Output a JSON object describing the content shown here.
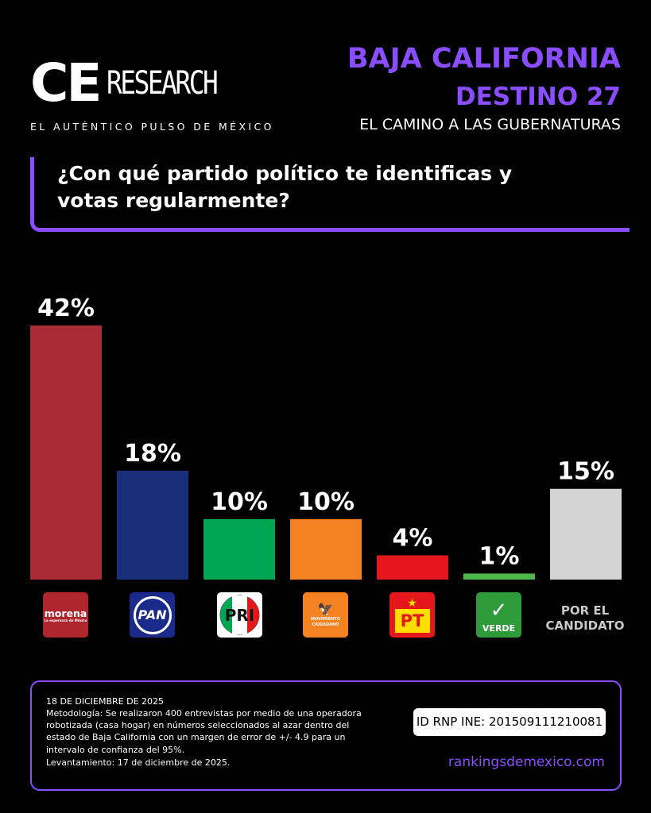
{
  "header": {
    "logo_ce": "CE",
    "logo_research": "RESEARCH",
    "logo_tagline": "EL AUTÉNTICO PULSO DE MÉXICO",
    "title": "BAJA CALIFORNIA",
    "subtitle": "DESTINO 27",
    "description": "EL CAMINO A LAS GUBERNATURAS"
  },
  "question": "¿Con qué partido político te identificas y votas regularmente?",
  "chart_data": {
    "type": "bar",
    "categories": [
      "morena",
      "PAN",
      "PRI",
      "MOVIMIENTO CIUDADANO",
      "PT",
      "VERDE",
      "POR EL CANDIDATO"
    ],
    "values": [
      42,
      18,
      10,
      10,
      4,
      1,
      15
    ],
    "value_labels": [
      "42%",
      "18%",
      "10%",
      "10%",
      "4%",
      "1%",
      "15%"
    ],
    "colors": [
      "#a82b36",
      "#1a2f7a",
      "#00a651",
      "#f58220",
      "#e4181b",
      "#4cb84a",
      "#d4d4d4"
    ],
    "ylim": [
      0,
      42
    ],
    "grid": false,
    "legend": "none"
  },
  "logos": {
    "morena": {
      "name": "morena",
      "tagline": "La esperanza de México"
    },
    "pan": {
      "name": "PAN"
    },
    "pri": {
      "name": "PRI",
      "colors": [
        "#00a651",
        "#ffffff",
        "#e4181b"
      ]
    },
    "mc": {
      "line1": "MOVIMIENTO",
      "line2": "CIUDADANO"
    },
    "pt": {
      "name": "PT"
    },
    "verde": {
      "name": "VERDE"
    },
    "candidato": "POR EL CANDIDATO"
  },
  "footer": {
    "date": "18 DE DICIEMBRE DE 2025",
    "methodology": "Metodología: Se realizaron 400 entrevistas por medio de una operadora robotizada (casa hogar) en números seleccionados al azar dentro del estado de Baja California con un margen de error de +/- 4.9 para un intervalo de confianza del 95%.",
    "survey": "Levantamiento: 17 de diciembre de 2025.",
    "rnp": "ID RNP INE: 201509111210081",
    "website": "rankingsdemexico.com"
  }
}
